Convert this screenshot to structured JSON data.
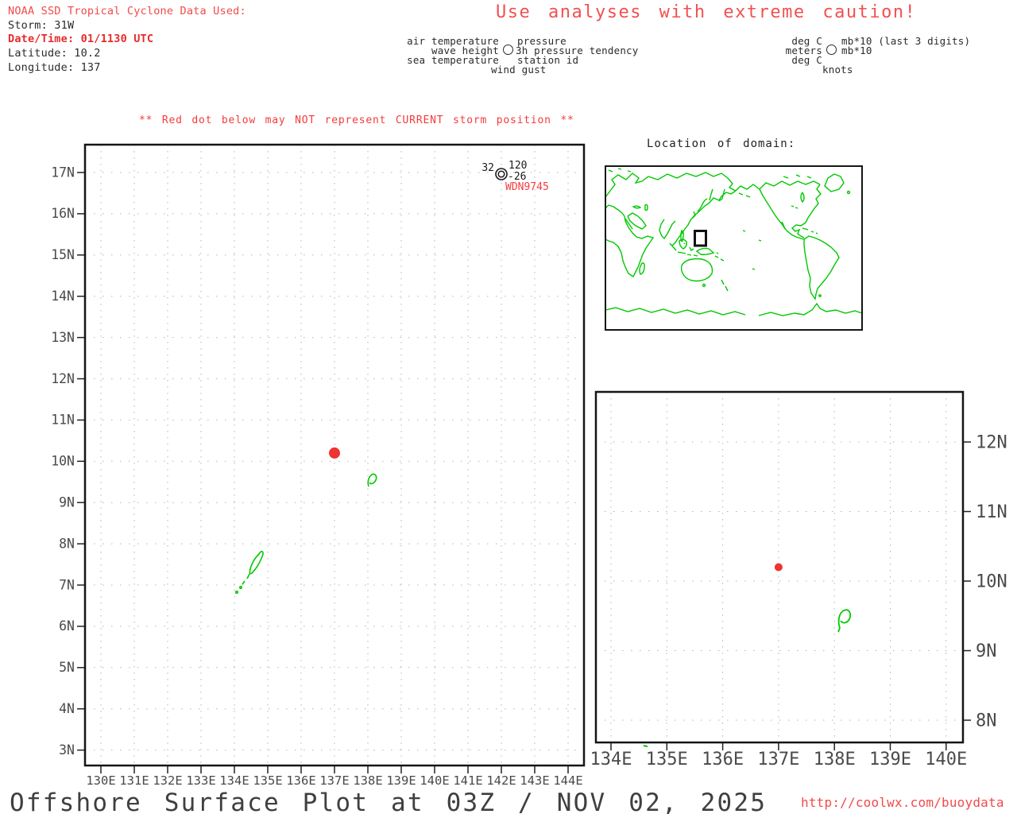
{
  "colors": {
    "red_text": "#f24a4a",
    "red_bold": "#e62b2b",
    "bright_red": "#f93b3b",
    "storm_red": "#ee3333",
    "green_coast": "#00c800",
    "grid_gray": "#b3b3b3",
    "axis_label_gray": "#4a4a4a",
    "black_text": "#2b2b2b"
  },
  "header": {
    "noaa_line": "NOAA SSD Tropical Cyclone Data Used:",
    "storm_line": "Storm: 31W",
    "datetime_line": "Date/Time: 01/1130 UTC",
    "latitude_line": "Latitude: 10.2",
    "longitude_line": "Longitude: 137",
    "caution": "Use analyses with extreme caution!"
  },
  "legend": {
    "station_model": {
      "left": [
        "air temperature",
        "wave height",
        "sea temperature"
      ],
      "right": [
        "pressure",
        "3h pressure tendency",
        "station id"
      ],
      "bottom": "wind gust",
      "symbol": "station-circle"
    },
    "units": {
      "left": [
        "deg C",
        "meters",
        "deg C"
      ],
      "right": [
        "mb*10 (last 3 digits)",
        "mb*10"
      ],
      "bottom": "knots",
      "symbol": "station-circle"
    }
  },
  "warning": "** Red dot below may NOT represent CURRENT storm position **",
  "inset": {
    "title": "Location of domain:"
  },
  "footer": {
    "title": "Offshore Surface Plot at 03Z / NOV 02, 2025",
    "url": "http://coolwx.com/buoydata"
  },
  "chart_data": [
    {
      "id": "main-plot",
      "type": "scatter",
      "title": "Offshore surface observations, western Pacific domain",
      "x_axis": {
        "ticks": [
          130,
          131,
          132,
          133,
          134,
          135,
          136,
          137,
          138,
          139,
          140,
          141,
          142,
          143,
          144
        ],
        "tick_labels": [
          "130E",
          "131E",
          "132E",
          "133E",
          "134E",
          "135E",
          "136E",
          "137E",
          "138E",
          "139E",
          "140E",
          "141E",
          "142E",
          "143E",
          "144E"
        ],
        "range": [
          129.5,
          144.5
        ]
      },
      "y_axis": {
        "ticks": [
          17,
          16,
          15,
          14,
          13,
          12,
          11,
          10,
          9,
          8,
          7,
          6,
          5,
          4,
          3
        ],
        "tick_labels": [
          "17N",
          "16N",
          "15N",
          "14N",
          "13N",
          "12N",
          "11N",
          "10N",
          "9N",
          "8N",
          "7N",
          "6N",
          "5N",
          "4N",
          "3N"
        ],
        "range": [
          2.6,
          17.7
        ]
      },
      "grid": true,
      "points": [
        {
          "name": "storm-position",
          "lon": 137.0,
          "lat": 10.2,
          "marker": "red-dot"
        },
        {
          "name": "station-observation",
          "lon": 142.0,
          "lat": 17.0,
          "marker": "station-circle",
          "air_temperature": "32",
          "pressure": "120",
          "pressure_tendency_3h": "-26",
          "station_id": "WDN9745"
        }
      ]
    },
    {
      "id": "zoom-plot",
      "type": "scatter",
      "title": "Zoomed storm domain",
      "x_axis": {
        "ticks": [
          134,
          135,
          136,
          137,
          138,
          139,
          140
        ],
        "tick_labels": [
          "134E",
          "135E",
          "136E",
          "137E",
          "138E",
          "139E",
          "140E"
        ],
        "range": [
          133.6,
          140.2
        ]
      },
      "y_axis": {
        "ticks": [
          12,
          11,
          10,
          9,
          8
        ],
        "tick_labels": [
          "12N",
          "11N",
          "10N",
          "9N",
          "8N"
        ],
        "range": [
          7.7,
          12.7
        ]
      },
      "grid": true,
      "points": [
        {
          "name": "storm-position",
          "lon": 137.0,
          "lat": 10.2,
          "marker": "red-dot"
        }
      ]
    }
  ]
}
